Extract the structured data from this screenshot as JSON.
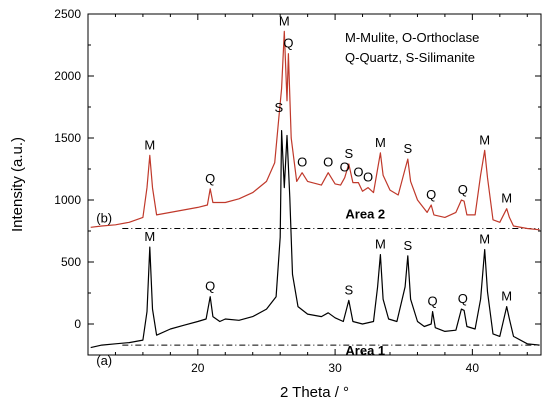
{
  "chart_data": {
    "type": "line",
    "xlabel": "2 Theta / °",
    "ylabel": "Intensity (a.u.)",
    "xlim": [
      12,
      45
    ],
    "ylim": [
      -250,
      2500
    ],
    "xticks": [
      20,
      30,
      40
    ],
    "yticks": [
      0,
      500,
      1000,
      1500,
      2000,
      2500
    ],
    "grid": false,
    "legend_lines": [
      "M-Mulite, O-Orthoclase",
      "Q-Quartz, S-Silimanite"
    ],
    "legend_position": "top-right",
    "series": [
      {
        "label": "(a)",
        "region": "Area 1",
        "color": "#000000",
        "baseline_y": -170,
        "points": [
          [
            12.2,
            -190
          ],
          [
            13,
            -170
          ],
          [
            14,
            -160
          ],
          [
            15,
            -150
          ],
          [
            16,
            -130
          ],
          [
            16.3,
            100
          ],
          [
            16.5,
            620
          ],
          [
            16.7,
            120
          ],
          [
            17,
            -90
          ],
          [
            18,
            -40
          ],
          [
            19,
            -10
          ],
          [
            20,
            20
          ],
          [
            20.6,
            40
          ],
          [
            20.9,
            220
          ],
          [
            21.1,
            60
          ],
          [
            21.6,
            20
          ],
          [
            22,
            40
          ],
          [
            23,
            30
          ],
          [
            24,
            60
          ],
          [
            25,
            120
          ],
          [
            25.7,
            220
          ],
          [
            26.0,
            700
          ],
          [
            26.1,
            1560
          ],
          [
            26.3,
            1100
          ],
          [
            26.5,
            1520
          ],
          [
            26.7,
            1020
          ],
          [
            26.9,
            400
          ],
          [
            27.3,
            140
          ],
          [
            28,
            80
          ],
          [
            29,
            60
          ],
          [
            29.5,
            90
          ],
          [
            30,
            50
          ],
          [
            30.6,
            20
          ],
          [
            31.0,
            190
          ],
          [
            31.3,
            20
          ],
          [
            32,
            0
          ],
          [
            32.8,
            20
          ],
          [
            33.1,
            300
          ],
          [
            33.3,
            560
          ],
          [
            33.5,
            200
          ],
          [
            33.9,
            40
          ],
          [
            34.5,
            20
          ],
          [
            35.1,
            300
          ],
          [
            35.3,
            550
          ],
          [
            35.5,
            200
          ],
          [
            36,
            20
          ],
          [
            36.5,
            -20
          ],
          [
            37.0,
            0
          ],
          [
            37.1,
            100
          ],
          [
            37.3,
            -30
          ],
          [
            38,
            -60
          ],
          [
            38.8,
            -50
          ],
          [
            39.2,
            120
          ],
          [
            39.4,
            110
          ],
          [
            39.6,
            -20
          ],
          [
            40.2,
            -40
          ],
          [
            40.6,
            200
          ],
          [
            40.9,
            600
          ],
          [
            41.1,
            260
          ],
          [
            41.5,
            -80
          ],
          [
            42,
            -100
          ],
          [
            42.5,
            140
          ],
          [
            42.7,
            40
          ],
          [
            43,
            -100
          ],
          [
            44,
            -160
          ],
          [
            44.9,
            -170
          ]
        ],
        "peaks": [
          {
            "label": "M",
            "x": 16.5,
            "y": 620
          },
          {
            "label": "Q",
            "x": 20.9,
            "y": 220
          },
          {
            "label": "S",
            "x": 31.0,
            "y": 190
          },
          {
            "label": "M",
            "x": 33.3,
            "y": 560
          },
          {
            "label": "S",
            "x": 35.3,
            "y": 550
          },
          {
            "label": "Q",
            "x": 37.1,
            "y": 100
          },
          {
            "label": "Q",
            "x": 39.3,
            "y": 120
          },
          {
            "label": "M",
            "x": 40.9,
            "y": 600
          },
          {
            "label": "M",
            "x": 42.5,
            "y": 140
          }
        ]
      },
      {
        "label": "(b)",
        "region": "Area 2",
        "color": "#c0392b",
        "baseline_y": 770,
        "points": [
          [
            12.2,
            780
          ],
          [
            13,
            790
          ],
          [
            14,
            800
          ],
          [
            15,
            820
          ],
          [
            16,
            860
          ],
          [
            16.3,
            1100
          ],
          [
            16.5,
            1360
          ],
          [
            16.7,
            1100
          ],
          [
            17,
            880
          ],
          [
            18,
            900
          ],
          [
            19,
            920
          ],
          [
            20,
            940
          ],
          [
            20.7,
            960
          ],
          [
            20.9,
            1090
          ],
          [
            21.1,
            980
          ],
          [
            22,
            980
          ],
          [
            23,
            1010
          ],
          [
            24,
            1060
          ],
          [
            25,
            1150
          ],
          [
            25.6,
            1300
          ],
          [
            25.9,
            1660
          ],
          [
            26.1,
            1900
          ],
          [
            26.3,
            2360
          ],
          [
            26.5,
            1800
          ],
          [
            26.6,
            2180
          ],
          [
            26.8,
            1500
          ],
          [
            27.2,
            1150
          ],
          [
            27.6,
            1220
          ],
          [
            28,
            1150
          ],
          [
            29,
            1120
          ],
          [
            29.5,
            1220
          ],
          [
            30,
            1130
          ],
          [
            30.4,
            1120
          ],
          [
            30.7,
            1180
          ],
          [
            31.0,
            1290
          ],
          [
            31.3,
            1140
          ],
          [
            31.7,
            1140
          ],
          [
            32,
            1070
          ],
          [
            32.4,
            1100
          ],
          [
            32.8,
            1060
          ],
          [
            33.1,
            1250
          ],
          [
            33.3,
            1380
          ],
          [
            33.5,
            1200
          ],
          [
            34,
            1080
          ],
          [
            34.6,
            1040
          ],
          [
            35.1,
            1250
          ],
          [
            35.3,
            1330
          ],
          [
            35.5,
            1150
          ],
          [
            36,
            1000
          ],
          [
            36.7,
            900
          ],
          [
            37.0,
            960
          ],
          [
            37.2,
            880
          ],
          [
            38,
            860
          ],
          [
            38.8,
            900
          ],
          [
            39.2,
            1000
          ],
          [
            39.4,
            990
          ],
          [
            39.6,
            880
          ],
          [
            40.2,
            880
          ],
          [
            40.6,
            1200
          ],
          [
            40.9,
            1400
          ],
          [
            41.1,
            1180
          ],
          [
            41.5,
            840
          ],
          [
            42,
            820
          ],
          [
            42.5,
            930
          ],
          [
            42.7,
            860
          ],
          [
            43,
            790
          ],
          [
            44,
            770
          ],
          [
            44.9,
            760
          ]
        ],
        "peaks": [
          {
            "label": "M",
            "x": 16.5,
            "y": 1360
          },
          {
            "label": "Q",
            "x": 20.9,
            "y": 1090
          },
          {
            "label": "S",
            "x": 25.9,
            "y": 1660
          },
          {
            "label": "M",
            "x": 26.3,
            "y": 2360
          },
          {
            "label": "Q",
            "x": 26.6,
            "y": 2180
          },
          {
            "label": "O",
            "x": 27.6,
            "y": 1220
          },
          {
            "label": "O",
            "x": 29.5,
            "y": 1220
          },
          {
            "label": "O",
            "x": 30.7,
            "y": 1180
          },
          {
            "label": "S",
            "x": 31.0,
            "y": 1290
          },
          {
            "label": "O",
            "x": 31.7,
            "y": 1140
          },
          {
            "label": "O",
            "x": 32.4,
            "y": 1100
          },
          {
            "label": "M",
            "x": 33.3,
            "y": 1380
          },
          {
            "label": "S",
            "x": 35.3,
            "y": 1330
          },
          {
            "label": "Q",
            "x": 37.0,
            "y": 960
          },
          {
            "label": "Q",
            "x": 39.3,
            "y": 1000
          },
          {
            "label": "M",
            "x": 40.9,
            "y": 1400
          },
          {
            "label": "M",
            "x": 42.5,
            "y": 930
          }
        ]
      }
    ]
  }
}
